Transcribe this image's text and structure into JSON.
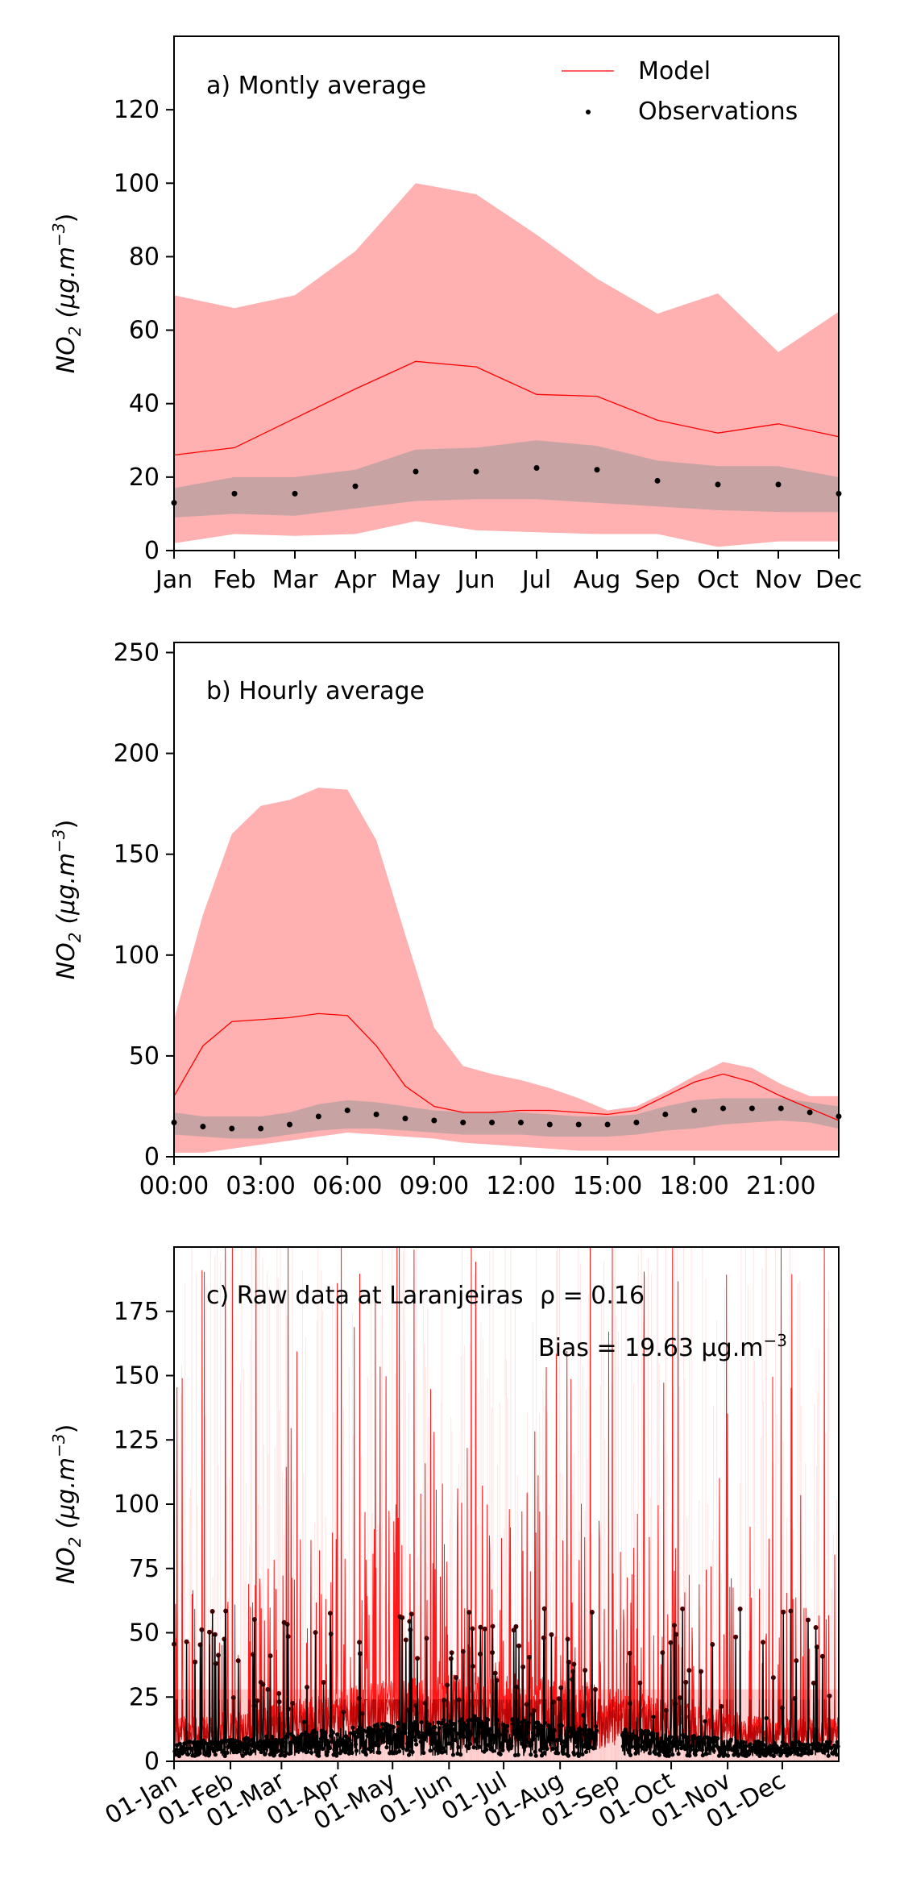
{
  "colors": {
    "model": "#ff0000",
    "model_band": "#ffb0b0",
    "obs": "#000000",
    "obs_band": "#999999"
  },
  "legend": {
    "model": "Model",
    "obs": "Observations",
    "placement": "top-right"
  },
  "ylabel": {
    "species": "NO",
    "sub": "2",
    "units": "(μg.m",
    "exp": "−3",
    "close": ")"
  },
  "stats": {
    "rho_label": "ρ = 0.16",
    "bias_label": "Bias = 19.63 μg.m",
    "bias_exp": "−3"
  },
  "chart_data": [
    {
      "type": "line",
      "title": "a) Montly average",
      "xlabel": "",
      "ylabel": "NO2 (μg.m−3)",
      "categories": [
        "Jan",
        "Feb",
        "Mar",
        "Apr",
        "May",
        "Jun",
        "Jul",
        "Aug",
        "Sep",
        "Oct",
        "Nov",
        "Dec"
      ],
      "ylim": [
        0,
        140
      ],
      "yticks": [
        0,
        20,
        40,
        60,
        80,
        100,
        120
      ],
      "grid": false,
      "series": [
        {
          "name": "Model",
          "kind": "line",
          "values": [
            26,
            28,
            36,
            44,
            51.5,
            50,
            42.5,
            42,
            35.5,
            32,
            34.5,
            31
          ],
          "band_upper": [
            69.5,
            66,
            69.5,
            81.5,
            100,
            97,
            86,
            74,
            64.5,
            70,
            54,
            65
          ],
          "band_lower": [
            2,
            4.5,
            4,
            4.5,
            8,
            5.5,
            5,
            4.5,
            4.5,
            1,
            2.5,
            2.5
          ]
        },
        {
          "name": "Observations",
          "kind": "points",
          "values": [
            13,
            15.5,
            15.5,
            17.5,
            21.5,
            21.5,
            22.5,
            22,
            19,
            18,
            18,
            15.5
          ],
          "band_upper": [
            17,
            20,
            20,
            22,
            27.5,
            28,
            30,
            28.5,
            24.5,
            23,
            23,
            20
          ],
          "band_lower": [
            9,
            10,
            9.5,
            11.5,
            13.5,
            14,
            14,
            13,
            12,
            11,
            10.5,
            10.5
          ]
        }
      ]
    },
    {
      "type": "line",
      "title": "b) Hourly average",
      "xlabel": "",
      "ylabel": "NO2 (μg.m−3)",
      "x": [
        0,
        1,
        2,
        3,
        4,
        5,
        6,
        7,
        8,
        9,
        10,
        11,
        12,
        13,
        14,
        15,
        16,
        17,
        18,
        19,
        20,
        21,
        22,
        23
      ],
      "xticks": [
        "00:00",
        "03:00",
        "06:00",
        "09:00",
        "12:00",
        "15:00",
        "18:00",
        "21:00"
      ],
      "xlim": [
        0,
        23
      ],
      "ylim": [
        0,
        255
      ],
      "yticks": [
        0,
        50,
        100,
        150,
        200,
        250
      ],
      "grid": false,
      "series": [
        {
          "name": "Model",
          "kind": "line",
          "values": [
            30,
            55,
            67,
            68,
            69,
            71,
            70,
            55,
            35,
            25,
            22,
            22,
            23,
            23,
            22,
            21,
            23,
            30,
            37,
            41,
            37,
            30,
            24,
            18
          ],
          "band_upper": [
            68,
            120,
            160,
            174,
            177,
            183,
            182,
            157,
            110,
            64,
            45,
            41,
            38,
            34,
            29,
            23,
            25,
            32,
            40,
            47,
            44,
            36,
            30,
            30
          ],
          "band_lower": [
            2,
            2,
            4,
            6,
            8,
            10,
            12,
            11,
            10,
            9,
            7,
            6,
            5,
            4,
            3,
            3,
            3,
            3,
            3,
            3,
            3,
            3,
            3,
            3
          ]
        },
        {
          "name": "Observations",
          "kind": "points",
          "values": [
            17,
            15,
            14,
            14,
            16,
            20,
            23,
            21,
            19,
            18,
            17,
            17,
            17,
            16,
            16,
            16,
            17,
            21,
            23,
            24,
            24,
            24,
            22,
            20
          ],
          "band_upper": [
            22,
            20,
            20,
            20,
            22,
            26,
            28,
            27,
            25,
            23,
            22,
            22,
            22,
            21,
            20,
            20,
            21,
            25,
            28,
            29,
            29,
            29,
            27,
            25
          ],
          "band_lower": [
            11,
            10,
            9,
            9,
            11,
            13,
            14,
            14,
            13,
            12,
            11,
            11,
            11,
            10,
            10,
            10,
            11,
            13,
            14,
            16,
            17,
            18,
            17,
            14
          ]
        }
      ]
    },
    {
      "type": "line",
      "title": "c) Raw data at Laranjeiras",
      "xlabel": "",
      "ylabel": "NO2 (μg.m−3)",
      "xticks": [
        "01-Jan",
        "01-Feb",
        "01-Mar",
        "01-Apr",
        "01-May",
        "01-Jun",
        "01-Jul",
        "01-Aug",
        "01-Sep",
        "01-Oct",
        "01-Nov",
        "01-Dec"
      ],
      "xtick_days": [
        0,
        31,
        59,
        90,
        120,
        151,
        181,
        212,
        243,
        273,
        304,
        334
      ],
      "xlim_days": [
        0,
        365
      ],
      "ylim": [
        0,
        200
      ],
      "yticks": [
        0,
        25,
        50,
        75,
        100,
        125,
        150,
        175
      ],
      "grid": false,
      "series": [
        {
          "name": "Model",
          "kind": "line",
          "note": "hourly model series, values 0–200+ μg.m−3 with spikes, typical 5–40"
        },
        {
          "name": "Observations",
          "kind": "points",
          "note": "hourly observations, mostly 0–20, occasional up to ~60"
        }
      ]
    }
  ]
}
